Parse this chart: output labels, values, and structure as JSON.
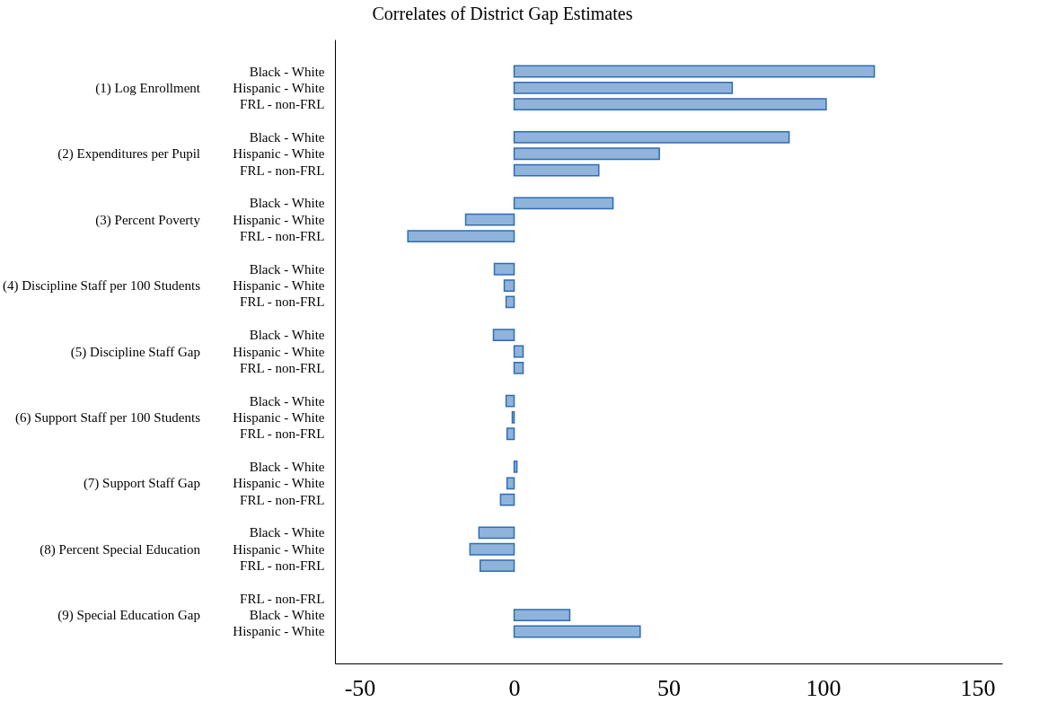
{
  "chart_data": {
    "type": "bar",
    "orientation": "horizontal",
    "title": "Correlates of District Gap Estimates",
    "categories": [
      "Black - White",
      "Hispanic - White",
      "FRL - non-FRL",
      "Black - White",
      "Hispanic - White",
      "FRL - non-FRL",
      "Black - White",
      "Hispanic - White",
      "FRL - non-FRL",
      "Black - White",
      "Hispanic - White",
      "FRL - non-FRL",
      "Black - White",
      "Hispanic - White",
      "FRL - non-FRL",
      "Black - White",
      "Hispanic - White",
      "FRL - non-FRL",
      "Black - White",
      "Hispanic - White",
      "FRL - non-FRL",
      "Black - White",
      "Hispanic - White",
      "FRL - non-FRL",
      "FRL - non-FRL",
      "Black - White",
      "Hispanic - White"
    ],
    "values": [
      116.6,
      70.6,
      101,
      89,
      47,
      27.4,
      32,
      -15.7,
      -34.4,
      -6.4,
      -3.2,
      -2.6,
      -6.7,
      2.9,
      2.9,
      -2.6,
      -0.6,
      -2.3,
      0.9,
      -2.3,
      -4.4,
      -11.4,
      -14.3,
      -11,
      null,
      18,
      40.8
    ],
    "color": "#8fb3da",
    "xlim": [
      -58,
      158
    ],
    "xticks": [
      -50,
      0,
      50,
      100,
      150
    ],
    "grid": false,
    "legend": false,
    "annotations": [
      "(1) Log Enrollment",
      "(2) Expenditures per Pupil",
      "(3) Percent Poverty",
      "(4) Discipline Staff per 100 Students",
      "(5) Discipline Staff Gap",
      "(6) Support Staff per 100 Students",
      "(7) Support Staff Gap",
      "(8) Percent Special Education",
      "(9) Special Education Gap"
    ]
  }
}
